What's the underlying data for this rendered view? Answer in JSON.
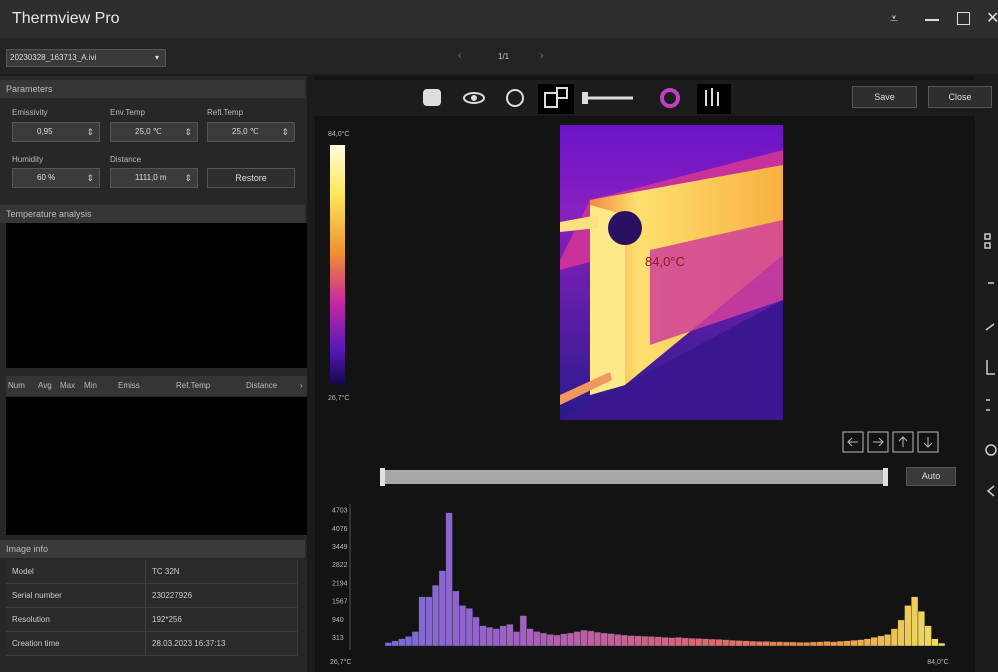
{
  "app": {
    "title": "Thermview Pro"
  },
  "file": {
    "name": "20230328_163713_A.ivi",
    "page": "1/1"
  },
  "toolbar": {
    "save": "Save",
    "close": "Close"
  },
  "parameters": {
    "title": "Parameters",
    "fields": [
      {
        "label": "Emissivity",
        "value": "0,95"
      },
      {
        "label": "Env.Temp",
        "value": "25,0 ℃"
      },
      {
        "label": "Refl.Temp",
        "value": "25,0 ℃"
      },
      {
        "label": "Humidity",
        "value": "60 %"
      },
      {
        "label": "Distance",
        "value": "1111,0 m"
      }
    ],
    "restore": "Restore"
  },
  "temperature_analysis": {
    "title": "Temperature analysis"
  },
  "measurements": {
    "columns": [
      "Num",
      "Avg",
      "Max",
      "Min",
      "Emiss",
      "Ref.Temp",
      "Distance"
    ]
  },
  "image_info": {
    "title": "Image info",
    "rows": [
      [
        "Model",
        "TC 32N"
      ],
      [
        "Serial number",
        "230227926"
      ],
      [
        "Resolution",
        "192*256"
      ],
      [
        "Creation time",
        "28.03.2023 16:37:13"
      ]
    ]
  },
  "thermal_image": {
    "max_label": "84,0°C",
    "min_label": "26,7°C",
    "spot_label": "84,0°C"
  },
  "range": {
    "auto": "Auto"
  },
  "chart_data": {
    "type": "bar",
    "values": [
      120,
      180,
      250,
      330,
      500,
      1700,
      1700,
      2100,
      2600,
      4600,
      1900,
      1400,
      1300,
      1000,
      700,
      650,
      600,
      700,
      750,
      500,
      1050,
      600,
      500,
      450,
      400,
      380,
      420,
      450,
      500,
      550,
      520,
      480,
      450,
      430,
      400,
      380,
      360,
      350,
      340,
      330,
      320,
      300,
      290,
      300,
      280,
      270,
      260,
      250,
      240,
      230,
      220,
      200,
      190,
      180,
      170,
      160,
      160,
      150,
      150,
      140,
      140,
      130,
      130,
      140,
      150,
      160,
      150,
      170,
      180,
      200,
      220,
      250,
      300,
      350,
      400,
      600,
      900,
      1400,
      1700,
      1200,
      700,
      250,
      100
    ],
    "ylim": [
      0,
      4900
    ],
    "yticks": [
      313,
      940,
      1567,
      2194,
      2822,
      3449,
      4076,
      4703
    ],
    "x_labels": [
      "26,7°C",
      "84,0°C"
    ],
    "colors": [
      "#7a6ad8",
      "#9a62c8",
      "#c2609a",
      "#dc6a6a",
      "#e69a48",
      "#efe064"
    ]
  }
}
